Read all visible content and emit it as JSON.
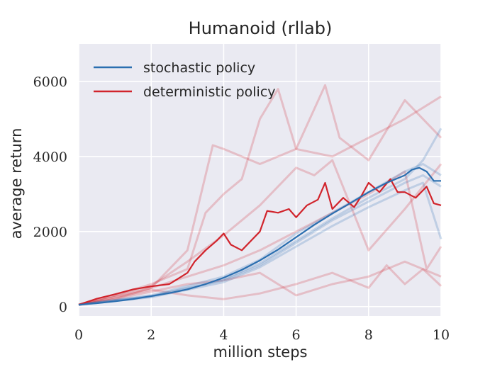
{
  "chart_data": {
    "type": "line",
    "title": "Humanoid (rllab)",
    "xlabel": "million steps",
    "ylabel": "average return",
    "xlim": [
      0,
      10
    ],
    "ylim": [
      -250,
      7000
    ],
    "xticks": [
      0,
      2,
      4,
      6,
      8,
      10
    ],
    "yticks": [
      0,
      2000,
      4000,
      6000
    ],
    "grid": true,
    "legend_position": "top-left",
    "colors": {
      "stochastic": "#2b6fb0",
      "deterministic": "#d1242c",
      "background": "#eaeaf2",
      "grid": "#ffffff"
    },
    "series": [
      {
        "name": "stochastic policy",
        "color": "#2b6fb0",
        "x": [
          0,
          0.5,
          1,
          1.5,
          2,
          2.5,
          3,
          3.5,
          4,
          4.5,
          5,
          5.5,
          6,
          6.5,
          7,
          7.5,
          8,
          8.5,
          9,
          9.2,
          9.4,
          9.6,
          9.8,
          10
        ],
        "y": [
          50,
          90,
          140,
          200,
          280,
          360,
          460,
          600,
          770,
          980,
          1230,
          1520,
          1850,
          2180,
          2480,
          2760,
          3050,
          3300,
          3500,
          3650,
          3700,
          3600,
          3350,
          3350
        ]
      },
      {
        "name": "deterministic policy",
        "color": "#d1242c",
        "x": [
          0,
          0.5,
          1,
          1.5,
          2,
          2.5,
          3,
          3.2,
          3.5,
          3.8,
          4,
          4.2,
          4.5,
          4.8,
          5,
          5.2,
          5.5,
          5.8,
          6,
          6.3,
          6.6,
          6.8,
          7,
          7.3,
          7.6,
          7.8,
          8,
          8.3,
          8.6,
          8.8,
          9,
          9.3,
          9.6,
          9.8,
          10
        ],
        "y": [
          50,
          210,
          330,
          460,
          540,
          600,
          900,
          1200,
          1500,
          1750,
          1950,
          1650,
          1500,
          1800,
          2000,
          2550,
          2500,
          2600,
          2380,
          2700,
          2850,
          3300,
          2600,
          2900,
          2650,
          2950,
          3300,
          3050,
          3400,
          3050,
          3050,
          2900,
          3200,
          2750,
          2700
        ]
      }
    ],
    "background_runs": {
      "stochastic": [
        {
          "x": [
            0,
            2,
            4,
            5,
            6,
            7,
            8,
            9,
            9.5,
            10
          ],
          "y": [
            50,
            280,
            720,
            1150,
            1750,
            2350,
            2900,
            3400,
            3900,
            4750
          ]
        },
        {
          "x": [
            0,
            2,
            4,
            5,
            6,
            7,
            8,
            9,
            9.5,
            10
          ],
          "y": [
            50,
            250,
            650,
            1050,
            1600,
            2150,
            2650,
            3100,
            3300,
            1800
          ]
        },
        {
          "x": [
            0,
            2,
            4,
            5,
            6,
            7,
            8,
            9,
            9.5,
            10
          ],
          "y": [
            50,
            300,
            800,
            1250,
            1950,
            2500,
            3050,
            3600,
            3800,
            3500
          ]
        },
        {
          "x": [
            0,
            2,
            4,
            5,
            6,
            7,
            8,
            9,
            9.5,
            10
          ],
          "y": [
            50,
            270,
            700,
            1100,
            1700,
            2300,
            2800,
            3300,
            3500,
            3200
          ]
        }
      ],
      "deterministic": [
        {
          "x": [
            0,
            1,
            2,
            3,
            3.5,
            4,
            4.5,
            5,
            5.5,
            6,
            7,
            8,
            9,
            10
          ],
          "y": [
            50,
            300,
            600,
            1000,
            2500,
            3000,
            3400,
            5000,
            5800,
            4200,
            4000,
            4500,
            5000,
            5600
          ]
        },
        {
          "x": [
            0,
            1,
            2,
            3,
            3.7,
            4,
            5,
            6,
            6.8,
            7.2,
            8,
            9,
            10
          ],
          "y": [
            50,
            250,
            500,
            1500,
            4300,
            4200,
            3800,
            4200,
            5900,
            4500,
            3900,
            5500,
            4500
          ]
        },
        {
          "x": [
            0,
            1,
            2,
            3,
            4,
            5,
            6,
            7,
            8,
            9,
            9.6,
            10
          ],
          "y": [
            50,
            200,
            500,
            800,
            1100,
            1500,
            2000,
            2500,
            3000,
            3600,
            1000,
            1600
          ]
        },
        {
          "x": [
            0,
            1,
            2,
            3,
            4,
            5,
            6,
            7,
            8,
            8.5,
            9,
            9.5,
            10
          ],
          "y": [
            50,
            250,
            450,
            300,
            200,
            350,
            600,
            900,
            500,
            1100,
            600,
            1000,
            550
          ]
        },
        {
          "x": [
            0,
            1,
            2,
            3,
            4,
            5,
            6,
            7,
            8,
            9,
            10
          ],
          "y": [
            50,
            200,
            400,
            600,
            700,
            900,
            300,
            600,
            800,
            1200,
            800
          ]
        },
        {
          "x": [
            0,
            1,
            2,
            3,
            4,
            5,
            6,
            6.5,
            7,
            8,
            9,
            10
          ],
          "y": [
            50,
            300,
            550,
            1200,
            1900,
            2700,
            3700,
            3500,
            3900,
            1500,
            2600,
            3800
          ]
        }
      ]
    }
  }
}
